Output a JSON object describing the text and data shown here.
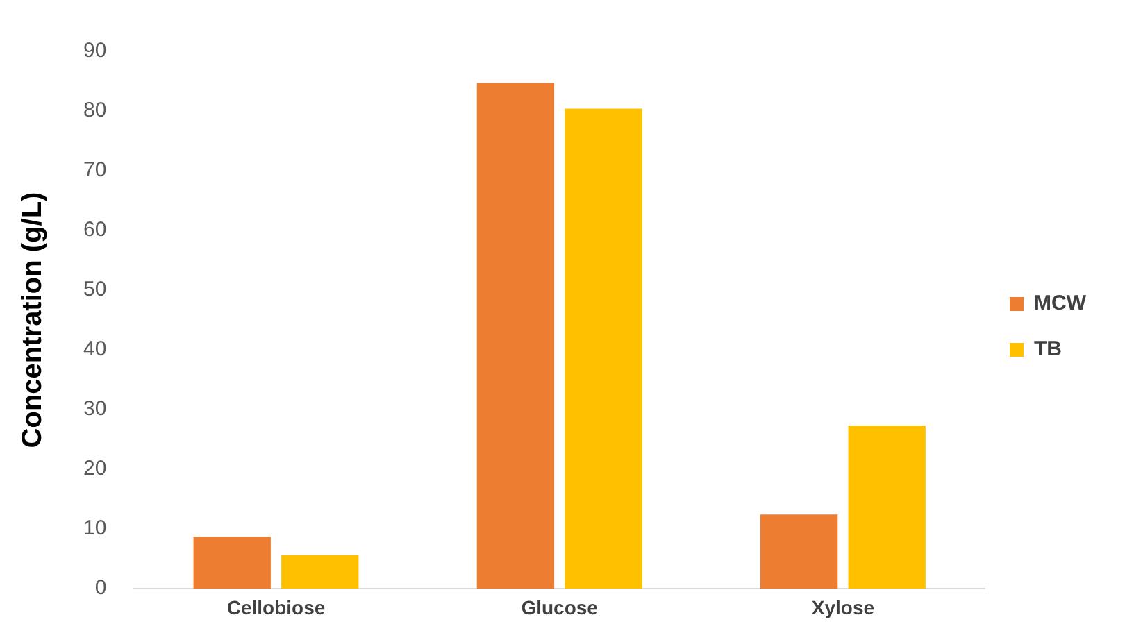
{
  "chart_data": {
    "type": "bar",
    "ylabel": "Concentration (g/L)",
    "categories": [
      "Cellobiose",
      "Glucose",
      "Xylose"
    ],
    "series": [
      {
        "name": "MCW",
        "color": "#ed7d31",
        "values": [
          8.7,
          84.7,
          12.4
        ]
      },
      {
        "name": "TB",
        "color": "#ffc000",
        "values": [
          5.6,
          80.4,
          27.3
        ]
      }
    ],
    "ylim": [
      0,
      90
    ],
    "yticks": [
      0,
      10,
      20,
      30,
      40,
      50,
      60,
      70,
      80,
      90
    ],
    "grid": false,
    "legend": "right"
  }
}
